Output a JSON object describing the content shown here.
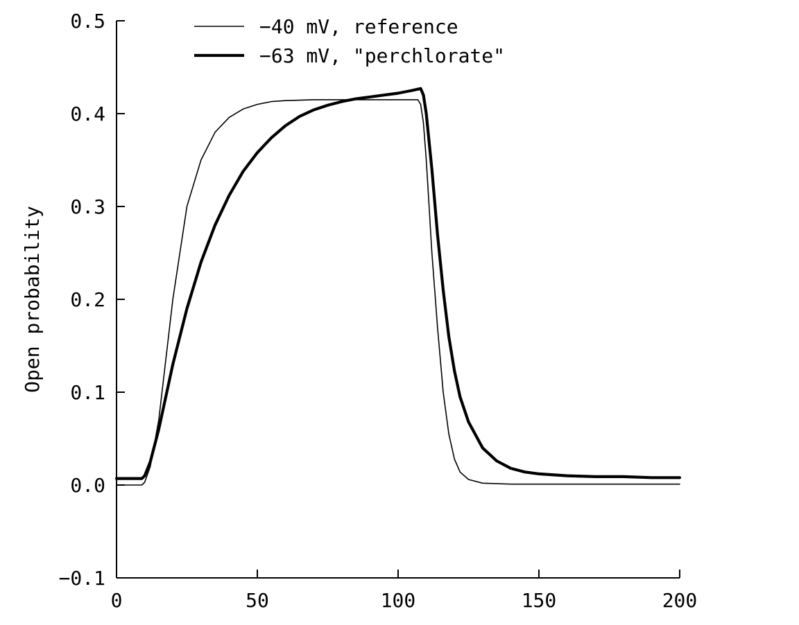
{
  "chart_data": {
    "type": "line",
    "title": "",
    "xlabel": "",
    "ylabel": "Open probability",
    "xlim": [
      0,
      200
    ],
    "ylim": [
      -0.1,
      0.5
    ],
    "x_ticks": [
      0,
      50,
      100,
      150,
      200
    ],
    "y_ticks": [
      -0.1,
      0.0,
      0.1,
      0.2,
      0.3,
      0.4,
      0.5
    ],
    "x_tick_labels": [
      "0",
      "50",
      "100",
      "150",
      "200"
    ],
    "y_tick_labels": [
      "−0.1",
      "0.0",
      "0.1",
      "0.2",
      "0.3",
      "0.4",
      "0.5"
    ],
    "grid": false,
    "legend_position": "top",
    "series": [
      {
        "name": "−40 mV, reference",
        "color": "#000000",
        "weight": "thin",
        "x": [
          0,
          9,
          10,
          12,
          15,
          20,
          25,
          30,
          35,
          40,
          45,
          50,
          55,
          60,
          70,
          80,
          90,
          100,
          107,
          108,
          109,
          110,
          111,
          112,
          114,
          116,
          118,
          120,
          122,
          125,
          130,
          140,
          150,
          170,
          200
        ],
        "values": [
          0.0,
          0.0,
          0.003,
          0.02,
          0.07,
          0.2,
          0.3,
          0.35,
          0.38,
          0.396,
          0.405,
          0.41,
          0.413,
          0.414,
          0.415,
          0.415,
          0.415,
          0.415,
          0.415,
          0.41,
          0.39,
          0.35,
          0.3,
          0.25,
          0.17,
          0.1,
          0.055,
          0.028,
          0.014,
          0.006,
          0.002,
          0.001,
          0.001,
          0.001,
          0.001
        ]
      },
      {
        "name": "−63 mV, \"perchlorate\"",
        "color": "#000000",
        "weight": "thick",
        "x": [
          0,
          9,
          10,
          12,
          15,
          20,
          25,
          30,
          35,
          40,
          45,
          50,
          55,
          60,
          65,
          70,
          75,
          80,
          85,
          90,
          95,
          100,
          105,
          108,
          109,
          110,
          112,
          114,
          116,
          118,
          120,
          122,
          125,
          130,
          135,
          140,
          145,
          150,
          160,
          170,
          180,
          190,
          200
        ],
        "values": [
          0.007,
          0.007,
          0.01,
          0.025,
          0.06,
          0.13,
          0.19,
          0.24,
          0.28,
          0.312,
          0.338,
          0.358,
          0.374,
          0.387,
          0.397,
          0.404,
          0.409,
          0.413,
          0.416,
          0.418,
          0.42,
          0.422,
          0.425,
          0.427,
          0.42,
          0.4,
          0.34,
          0.27,
          0.21,
          0.16,
          0.123,
          0.095,
          0.068,
          0.04,
          0.026,
          0.018,
          0.014,
          0.012,
          0.01,
          0.009,
          0.009,
          0.008,
          0.008
        ]
      }
    ]
  }
}
